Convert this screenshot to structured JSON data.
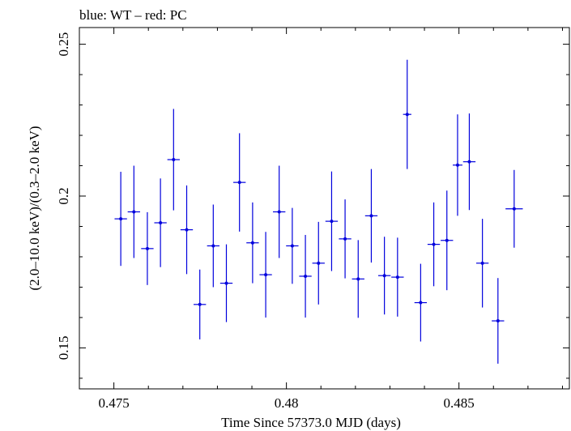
{
  "header": {
    "title": "blue: WT – red: PC"
  },
  "colors": {
    "series": "#0000dd",
    "frame": "#000000",
    "background": "#ffffff"
  },
  "chart_data": {
    "type": "scatter",
    "title": "blue: WT – red: PC",
    "xlabel": "Time Since 57373.0 MJD (days)",
    "ylabel": "(2.0–10.0 keV)/(0.3–2.0 keV)",
    "xlim": [
      0.474,
      0.4882
    ],
    "ylim": [
      0.1365,
      0.2555
    ],
    "xticks": [
      0.475,
      0.48,
      0.485
    ],
    "xtick_labels": [
      "0.475",
      "0.48",
      "0.485"
    ],
    "yticks": [
      0.15,
      0.2,
      0.25
    ],
    "ytick_labels": [
      "0.15",
      "0.2",
      "0.25"
    ],
    "grid": false,
    "series": [
      {
        "name": "WT",
        "color": "#0000dd",
        "points": [
          {
            "x": 0.4752,
            "xerr": 0.00018,
            "y": 0.1925,
            "yerr": 0.0155
          },
          {
            "x": 0.47558,
            "xerr": 0.00018,
            "y": 0.1948,
            "yerr": 0.0152
          },
          {
            "x": 0.47597,
            "xerr": 0.00018,
            "y": 0.1827,
            "yerr": 0.012
          },
          {
            "x": 0.47635,
            "xerr": 0.00018,
            "y": 0.1912,
            "yerr": 0.0146
          },
          {
            "x": 0.47673,
            "xerr": 0.00018,
            "y": 0.212,
            "yerr": 0.0167
          },
          {
            "x": 0.47711,
            "xerr": 0.00018,
            "y": 0.1889,
            "yerr": 0.0146
          },
          {
            "x": 0.47749,
            "xerr": 0.00018,
            "y": 0.1643,
            "yerr": 0.0115
          },
          {
            "x": 0.47788,
            "xerr": 0.00018,
            "y": 0.1836,
            "yerr": 0.0136
          },
          {
            "x": 0.47826,
            "xerr": 0.00018,
            "y": 0.1713,
            "yerr": 0.0128
          },
          {
            "x": 0.47864,
            "xerr": 0.00018,
            "y": 0.2045,
            "yerr": 0.0162
          },
          {
            "x": 0.47902,
            "xerr": 0.00018,
            "y": 0.1846,
            "yerr": 0.0133
          },
          {
            "x": 0.4794,
            "xerr": 0.00018,
            "y": 0.1741,
            "yerr": 0.0141
          },
          {
            "x": 0.47979,
            "xerr": 0.00018,
            "y": 0.1948,
            "yerr": 0.0152
          },
          {
            "x": 0.48017,
            "xerr": 0.00018,
            "y": 0.1836,
            "yerr": 0.0125
          },
          {
            "x": 0.48055,
            "xerr": 0.00018,
            "y": 0.1736,
            "yerr": 0.0136
          },
          {
            "x": 0.48093,
            "xerr": 0.00018,
            "y": 0.1779,
            "yerr": 0.0136
          },
          {
            "x": 0.48131,
            "xerr": 0.00018,
            "y": 0.1917,
            "yerr": 0.0164
          },
          {
            "x": 0.4817,
            "xerr": 0.00018,
            "y": 0.1859,
            "yerr": 0.013
          },
          {
            "x": 0.48208,
            "xerr": 0.00018,
            "y": 0.1727,
            "yerr": 0.0128
          },
          {
            "x": 0.48246,
            "xerr": 0.00018,
            "y": 0.1935,
            "yerr": 0.0154
          },
          {
            "x": 0.48284,
            "xerr": 0.00018,
            "y": 0.1738,
            "yerr": 0.0128
          },
          {
            "x": 0.48322,
            "xerr": 0.00018,
            "y": 0.1733,
            "yerr": 0.013
          },
          {
            "x": 0.4835,
            "xerr": 0.00012,
            "y": 0.2269,
            "yerr": 0.018
          },
          {
            "x": 0.48389,
            "xerr": 0.00018,
            "y": 0.1649,
            "yerr": 0.0128
          },
          {
            "x": 0.48427,
            "xerr": 0.00018,
            "y": 0.1841,
            "yerr": 0.0138
          },
          {
            "x": 0.48465,
            "xerr": 0.00018,
            "y": 0.1854,
            "yerr": 0.0164
          },
          {
            "x": 0.48496,
            "xerr": 0.00014,
            "y": 0.2102,
            "yerr": 0.0167
          },
          {
            "x": 0.4853,
            "xerr": 0.00018,
            "y": 0.2113,
            "yerr": 0.0159
          },
          {
            "x": 0.48568,
            "xerr": 0.00018,
            "y": 0.1779,
            "yerr": 0.0146
          },
          {
            "x": 0.48613,
            "xerr": 0.00018,
            "y": 0.1589,
            "yerr": 0.0141
          },
          {
            "x": 0.4866,
            "xerr": 0.00025,
            "y": 0.1958,
            "yerr": 0.0128
          }
        ]
      }
    ]
  }
}
